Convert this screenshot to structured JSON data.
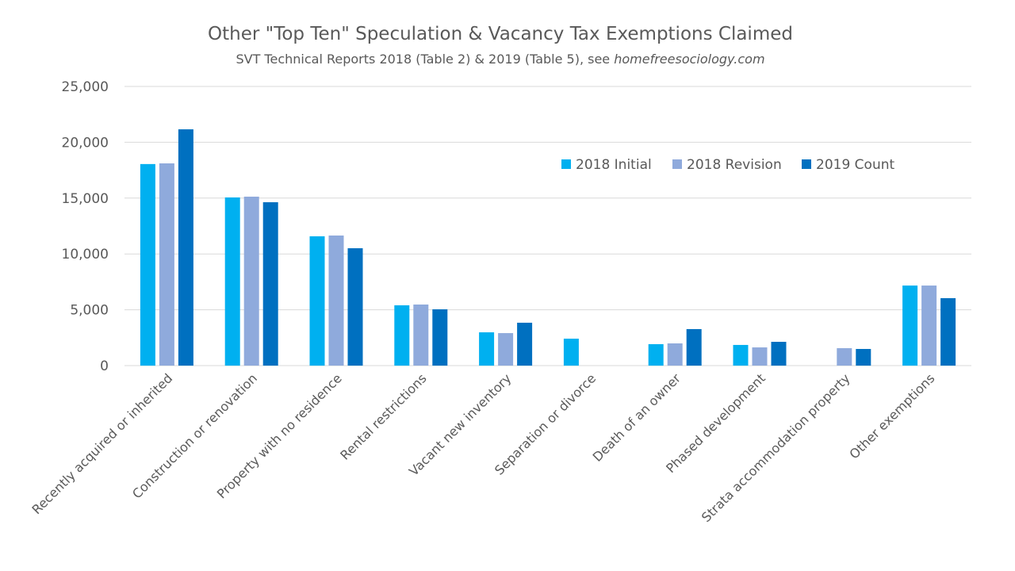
{
  "chart_data": {
    "type": "bar",
    "title": "Other \"Top Ten\" Speculation & Vacancy Tax Exemptions Claimed",
    "subtitle_prefix": "SVT Technical Reports 2018 (Table 2) & 2019 (Table 5), see ",
    "subtitle_link": "homefreesociology.com",
    "xlabel": "",
    "ylabel": "",
    "ylim": [
      0,
      25000
    ],
    "yticks": [
      0,
      5000,
      10000,
      15000,
      20000,
      25000
    ],
    "ytick_labels": [
      "0",
      "5,000",
      "10,000",
      "15,000",
      "20,000",
      "25,000"
    ],
    "grid": true,
    "legend_position": "top-right",
    "categories": [
      "Recently acquired or inherited",
      "Construction or renovation",
      "Property with no residence",
      "Rental restrictions",
      "Vacant new inventory",
      "Separation or divorce",
      "Death of an owner",
      "Phased development",
      "Strata accommodation property",
      "Other exemptions"
    ],
    "series": [
      {
        "name": "2018 Initial",
        "color": "#00B0F0",
        "values": [
          18050,
          15060,
          11580,
          5400,
          2980,
          2410,
          1920,
          1850,
          null,
          7170
        ]
      },
      {
        "name": "2018 Revision",
        "color": "#8FAADC",
        "values": [
          18110,
          15130,
          11650,
          5470,
          2910,
          null,
          1990,
          1630,
          1560,
          7170
        ]
      },
      {
        "name": "2019 Count",
        "color": "#0070C0",
        "values": [
          21160,
          14630,
          10510,
          5040,
          3840,
          null,
          3270,
          2130,
          1490,
          6040
        ]
      }
    ]
  }
}
